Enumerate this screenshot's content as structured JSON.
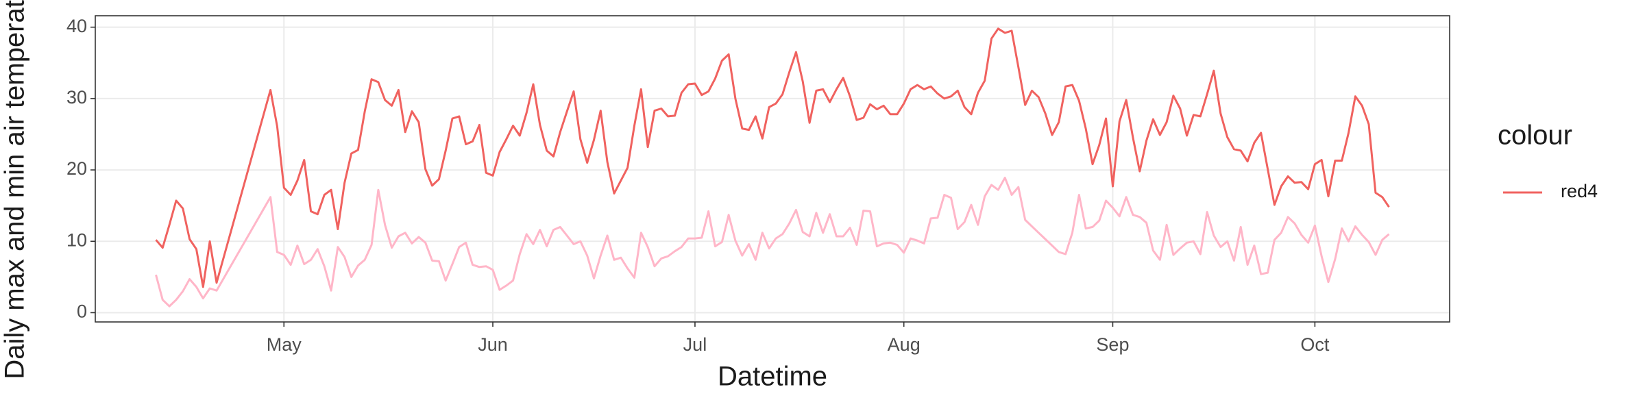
{
  "chart_data": {
    "type": "line",
    "y_label": "Daily max and min air temperature",
    "x_label": "Datetime",
    "legend_title": "colour",
    "x": [
      102,
      103,
      104,
      105,
      106,
      107,
      108,
      109,
      110,
      111,
      119,
      120,
      121,
      122,
      123,
      124,
      125,
      126,
      127,
      128,
      129,
      130,
      131,
      132,
      133,
      134,
      135,
      136,
      137,
      138,
      139,
      140,
      141,
      142,
      143,
      144,
      145,
      146,
      147,
      148,
      149,
      150,
      151,
      152,
      153,
      154,
      155,
      156,
      157,
      158,
      159,
      160,
      161,
      162,
      163,
      164,
      165,
      166,
      167,
      168,
      169,
      170,
      171,
      172,
      173,
      174,
      175,
      176,
      177,
      178,
      179,
      180,
      181,
      182,
      183,
      184,
      185,
      186,
      187,
      188,
      189,
      190,
      191,
      192,
      193,
      194,
      195,
      196,
      197,
      198,
      199,
      200,
      201,
      202,
      203,
      204,
      205,
      206,
      207,
      208,
      209,
      210,
      211,
      212,
      213,
      214,
      215,
      216,
      217,
      218,
      219,
      220,
      221,
      222,
      223,
      224,
      225,
      226,
      227,
      228,
      229,
      230,
      231,
      232,
      233,
      234,
      235,
      236,
      237,
      238,
      239,
      240,
      241,
      242,
      243,
      244,
      245,
      246,
      247,
      248,
      249,
      250,
      251,
      252,
      253,
      254,
      255,
      256,
      257,
      258,
      259,
      260,
      261,
      262,
      263,
      264,
      265,
      266,
      267,
      268,
      269,
      270,
      271,
      272,
      273,
      274,
      275,
      276,
      277,
      278,
      279,
      280,
      281,
      282,
      283,
      284,
      285
    ],
    "series": [
      {
        "name": "red4",
        "color": "#f0625f",
        "values": [
          10.2,
          9.1,
          12.3,
          15.7,
          14.6,
          10.3,
          8.9,
          3.6,
          10.0,
          4.2,
          31.2,
          26.1,
          17.5,
          16.5,
          18.5,
          21.4,
          14.2,
          13.8,
          16.5,
          17.2,
          11.7,
          18.2,
          22.3,
          22.8,
          28.2,
          32.7,
          32.3,
          29.8,
          29,
          31.2,
          25.3,
          28.2,
          26.7,
          20.1,
          17.8,
          18.7,
          22.7,
          27.2,
          27.5,
          23.6,
          24,
          26.3,
          19.6,
          19.2,
          22.5,
          24.3,
          26.2,
          24.8,
          28,
          32,
          26.3,
          22.7,
          21.9,
          25.3,
          28.2,
          31,
          24.3,
          21,
          24.2,
          28.3,
          21.1,
          16.7,
          18.5,
          20.3,
          26.2,
          31.3,
          23.2,
          28.3,
          28.6,
          27.5,
          27.6,
          30.8,
          32,
          32.1,
          30.5,
          31,
          32.8,
          35.3,
          36.2,
          30,
          25.8,
          25.6,
          27.5,
          24.4,
          28.8,
          29.3,
          30.6,
          33.7,
          36.5,
          32.4,
          26.6,
          31.1,
          31.3,
          29.5,
          31.3,
          32.9,
          30.3,
          27,
          27.3,
          29.2,
          28.5,
          29,
          27.8,
          27.8,
          29.3,
          31.3,
          31.9,
          31.3,
          31.7,
          30.7,
          30,
          30.3,
          31.1,
          28.8,
          27.8,
          30.8,
          32.5,
          38.4,
          39.8,
          39.2,
          39.5,
          34.4,
          29.1,
          31.1,
          30.2,
          27.9,
          24.9,
          26.7,
          31.7,
          31.9,
          29.7,
          25.8,
          20.8,
          23.5,
          27.2,
          17.7,
          26.8,
          29.8,
          24.5,
          19.8,
          24.1,
          27.1,
          24.9,
          26.7,
          30.4,
          28.6,
          24.8,
          27.7,
          27.5,
          30.6,
          33.9,
          27.9,
          24.6,
          22.9,
          22.7,
          21.2,
          23.8,
          25.2,
          20.1,
          15.1,
          17.7,
          19.1,
          18.2,
          18.3,
          17.3,
          20.8,
          21.4,
          16.3,
          21.3,
          21.3,
          25.2,
          30.3,
          29,
          26.4,
          16.8,
          16.2,
          14.8
        ]
      },
      {
        "color": "#ffb6c8",
        "values": [
          5.3,
          1.8,
          0.9,
          1.8,
          3,
          4.7,
          3.6,
          2,
          3.4,
          3.1,
          16.2,
          8.5,
          8.1,
          6.7,
          9.4,
          6.8,
          7.4,
          8.9,
          6.5,
          3.1,
          9.2,
          7.8,
          5,
          6.6,
          7.4,
          9.5,
          17.2,
          12.3,
          9.1,
          10.7,
          11.2,
          9.7,
          10.6,
          9.8,
          7.3,
          7.2,
          4.5,
          6.8,
          9.2,
          9.8,
          6.7,
          6.4,
          6.5,
          6,
          3.2,
          3.8,
          4.5,
          8.2,
          11,
          9.6,
          11.6,
          9.3,
          11.6,
          12,
          10.8,
          9.6,
          10,
          8,
          4.8,
          8,
          10.8,
          7.4,
          7.7,
          6.2,
          4.9,
          11.2,
          9.2,
          6.5,
          7.6,
          7.9,
          8.6,
          9.2,
          10.4,
          10.4,
          10.5,
          14.2,
          9.3,
          9.9,
          13.7,
          10.1,
          8,
          9.6,
          7.4,
          11.2,
          9,
          10.4,
          11,
          12.5,
          14.4,
          11.3,
          10.7,
          14,
          11.2,
          13.8,
          10.7,
          10.7,
          11.9,
          9.5,
          14.3,
          14.2,
          9.3,
          9.7,
          9.8,
          9.5,
          8.4,
          10.4,
          10.1,
          9.7,
          13.2,
          13.3,
          16.5,
          16.1,
          11.7,
          12.7,
          15.1,
          12.3,
          16.3,
          17.9,
          17.2,
          18.9,
          16.5,
          17.6,
          13,
          12.1,
          11.2,
          10.3,
          9.4,
          8.5,
          8.2,
          11.2,
          16.5,
          11.8,
          12,
          12.9,
          15.7,
          14.7,
          13.5,
          16.2,
          13.7,
          13.4,
          12.6,
          8.7,
          7.4,
          12.3,
          8.1,
          9,
          9.8,
          10,
          8.2,
          14.1,
          10.8,
          9.2,
          10,
          7.3,
          12,
          6.7,
          9.4,
          5.4,
          5.6,
          10.2,
          11.2,
          13.4,
          12.5,
          10.9,
          9.8,
          12.2,
          7.9,
          4.3,
          7.5,
          11.8,
          10,
          12.1,
          10.9,
          9.9,
          8.1,
          10.2,
          11
        ]
      }
    ],
    "xlim": [
      93,
      294
    ],
    "xticks": [
      {
        "value": 121,
        "label": "May"
      },
      {
        "value": 152,
        "label": "Jun"
      },
      {
        "value": 182,
        "label": "Jul"
      },
      {
        "value": 213,
        "label": "Aug"
      },
      {
        "value": 244,
        "label": "Sep"
      },
      {
        "value": 274,
        "label": "Oct"
      }
    ],
    "ylim": [
      -1.3,
      41.6
    ],
    "yticks": [
      0,
      10,
      20,
      30,
      40
    ],
    "grid": true,
    "legend": "right"
  }
}
